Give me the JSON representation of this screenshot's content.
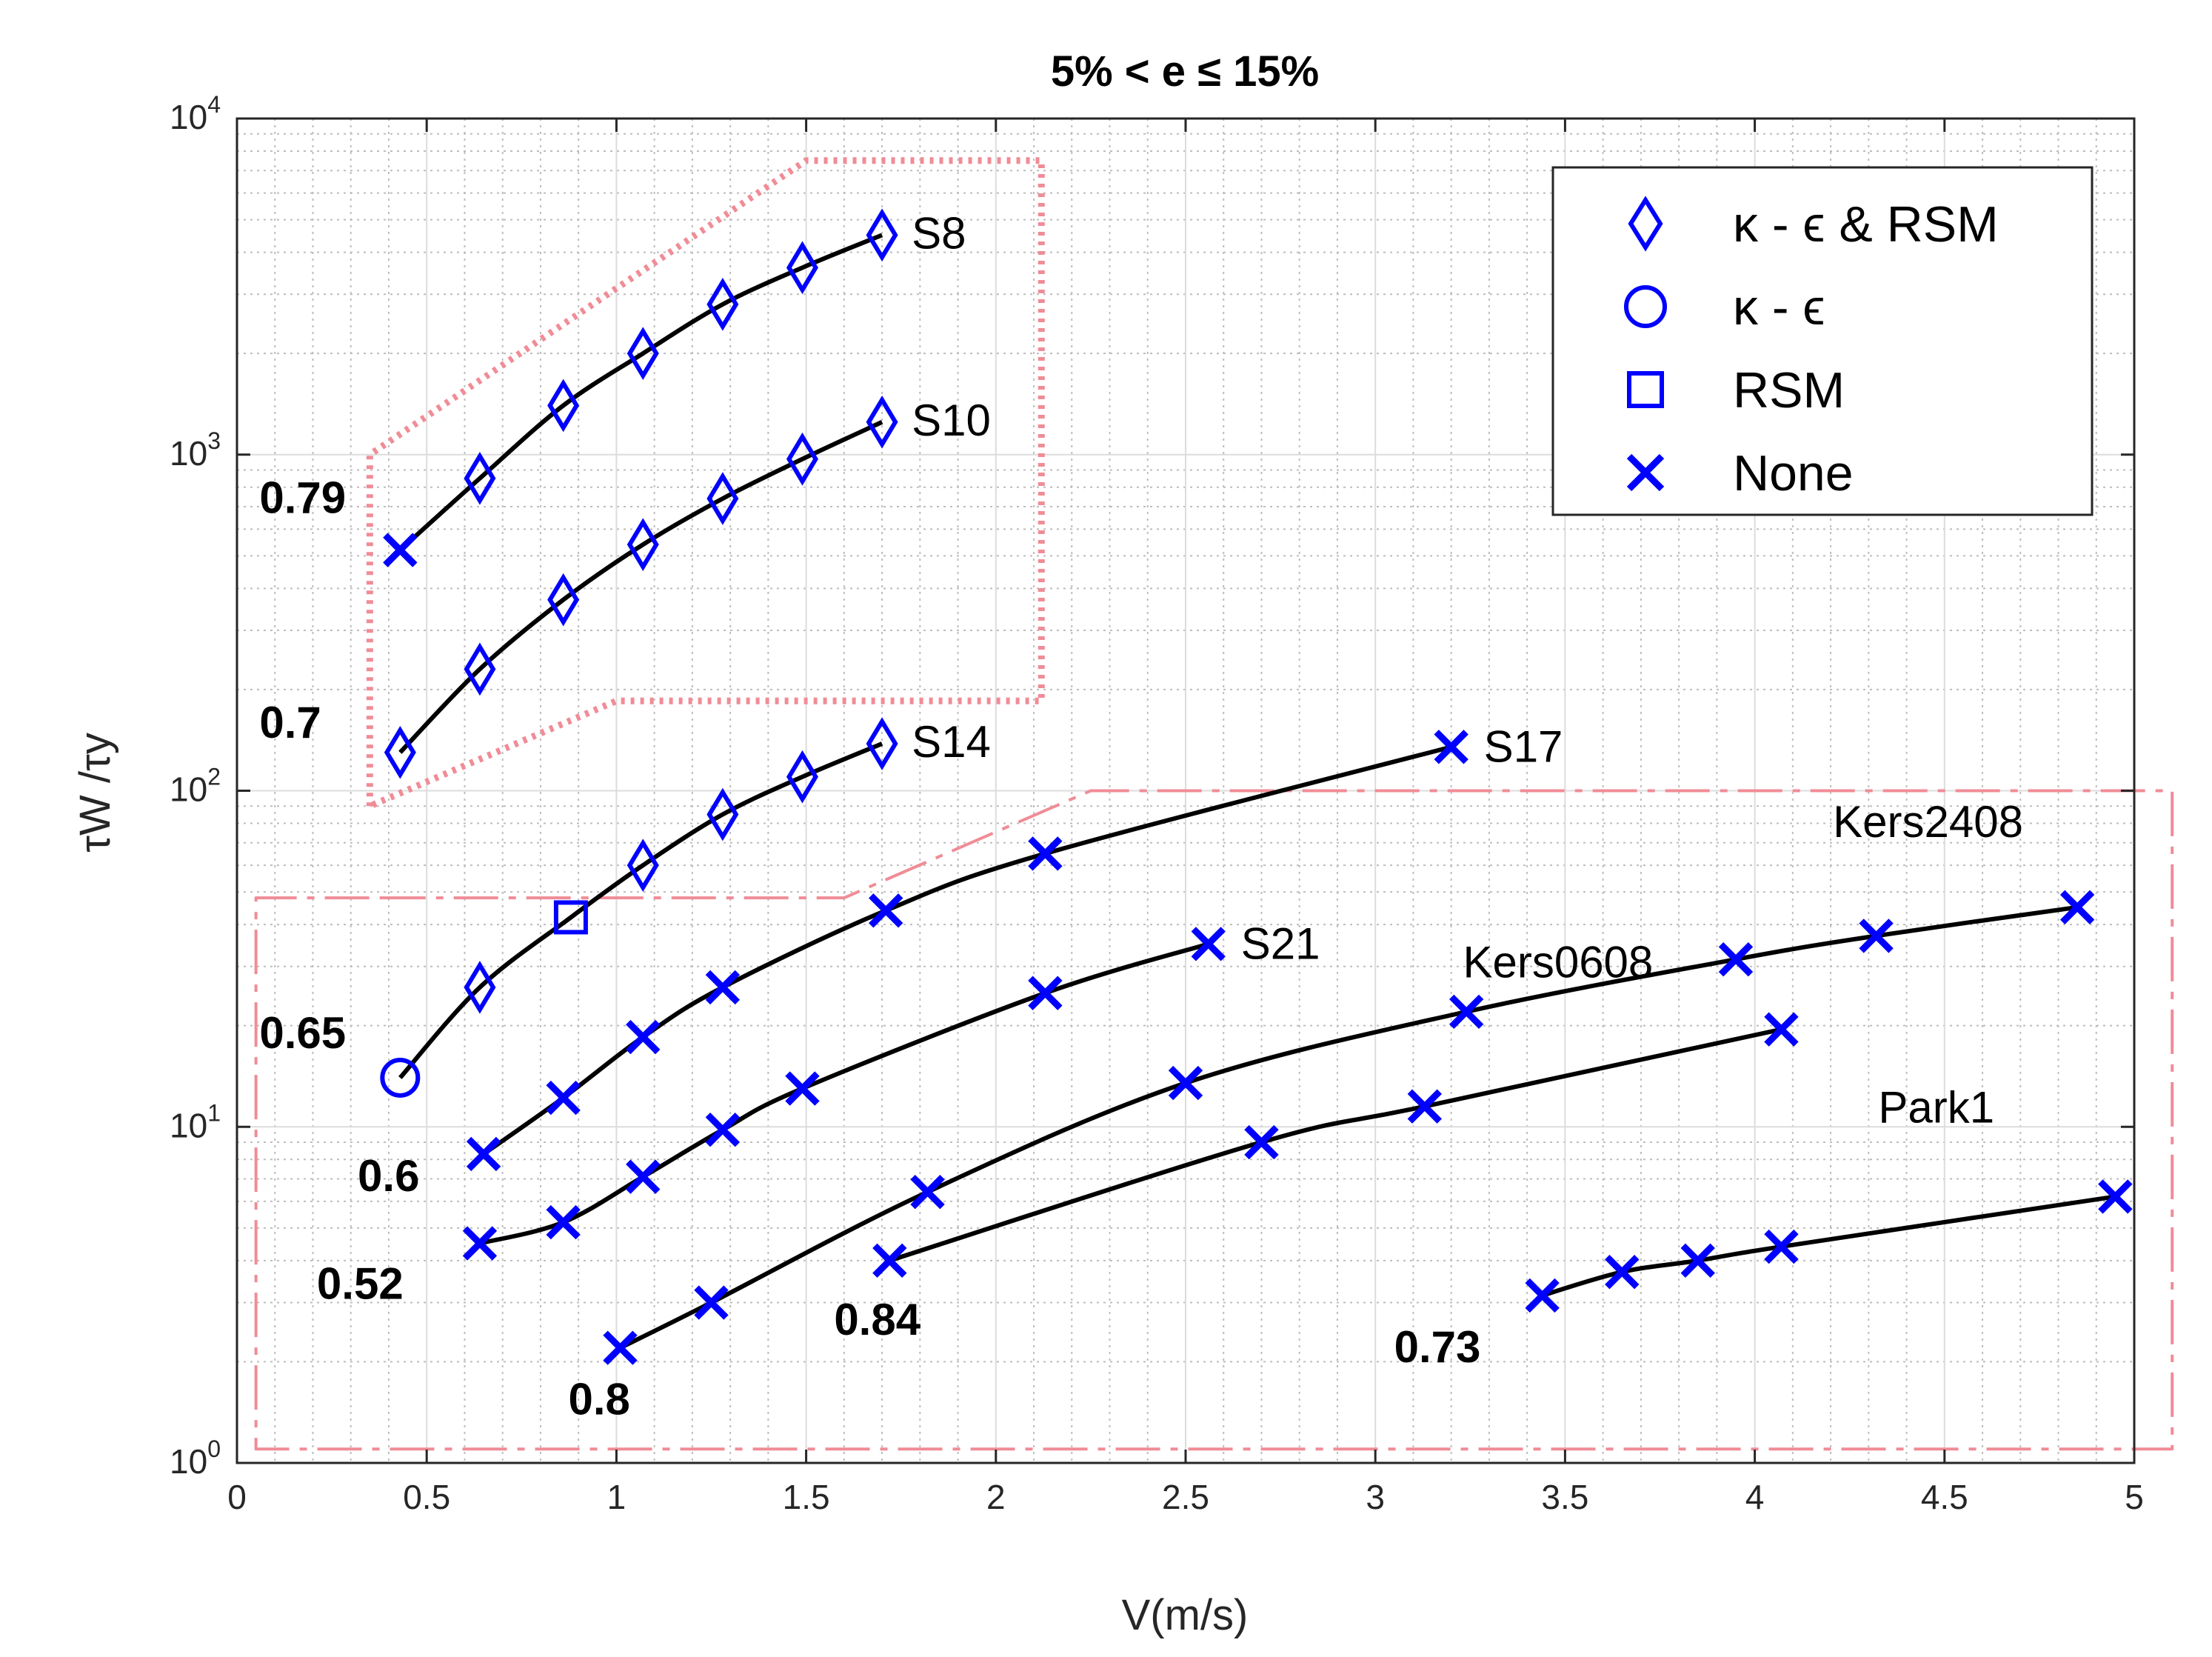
{
  "chart_data": {
    "type": "line",
    "title": "5% < e ≤ 15%",
    "xlabel": "V(m/s)",
    "ylabel": "τW /τy",
    "xlim": [
      0,
      5
    ],
    "ylim": [
      1,
      10000
    ],
    "yscale": "log",
    "x_ticks": [
      "0",
      "0.5",
      "1",
      "1.5",
      "2",
      "2.5",
      "3",
      "3.5",
      "4",
      "4.5",
      "5"
    ],
    "y_ticks": [
      {
        "base": "10",
        "exp": "0"
      },
      {
        "base": "10",
        "exp": "1"
      },
      {
        "base": "10",
        "exp": "2"
      },
      {
        "base": "10",
        "exp": "3"
      },
      {
        "base": "10",
        "exp": "4"
      }
    ],
    "grid": true,
    "legend_position": "top-right",
    "legend": [
      {
        "marker": "diamond",
        "label": "κ - ϵ & RSM"
      },
      {
        "marker": "circle",
        "label": "κ - ϵ"
      },
      {
        "marker": "square",
        "label": "RSM"
      },
      {
        "marker": "x",
        "label": "None"
      }
    ],
    "colors": {
      "marker": "#0000ff",
      "line": "#000000",
      "region": "#f08c96"
    },
    "series": [
      {
        "name": "S8",
        "start_label": "0.79",
        "points": [
          {
            "x": 0.43,
            "y": 520,
            "m": "x"
          },
          {
            "x": 0.64,
            "y": 850,
            "m": "diamond"
          },
          {
            "x": 0.86,
            "y": 1400,
            "m": "diamond"
          },
          {
            "x": 1.07,
            "y": 2000,
            "m": "diamond"
          },
          {
            "x": 1.28,
            "y": 2800,
            "m": "diamond"
          },
          {
            "x": 1.49,
            "y": 3600,
            "m": "diamond"
          },
          {
            "x": 1.7,
            "y": 4500,
            "m": "diamond"
          }
        ]
      },
      {
        "name": "S10",
        "start_label": "0.7",
        "points": [
          {
            "x": 0.43,
            "y": 130,
            "m": "diamond"
          },
          {
            "x": 0.64,
            "y": 230,
            "m": "diamond"
          },
          {
            "x": 0.86,
            "y": 370,
            "m": "diamond"
          },
          {
            "x": 1.07,
            "y": 540,
            "m": "diamond"
          },
          {
            "x": 1.28,
            "y": 740,
            "m": "diamond"
          },
          {
            "x": 1.49,
            "y": 970,
            "m": "diamond"
          },
          {
            "x": 1.7,
            "y": 1250,
            "m": "diamond"
          }
        ]
      },
      {
        "name": "S14",
        "start_label": "0.65",
        "points": [
          {
            "x": 0.43,
            "y": 14,
            "m": "circle"
          },
          {
            "x": 0.64,
            "y": 26,
            "m": "diamond"
          },
          {
            "x": 0.88,
            "y": 42,
            "m": "square"
          },
          {
            "x": 1.07,
            "y": 60,
            "m": "diamond"
          },
          {
            "x": 1.28,
            "y": 85,
            "m": "diamond"
          },
          {
            "x": 1.49,
            "y": 110,
            "m": "diamond"
          },
          {
            "x": 1.7,
            "y": 138,
            "m": "diamond"
          }
        ]
      },
      {
        "name": "S17",
        "start_label": "0.6",
        "points": [
          {
            "x": 0.65,
            "y": 8.3,
            "m": "x"
          },
          {
            "x": 0.86,
            "y": 12.2,
            "m": "x"
          },
          {
            "x": 1.07,
            "y": 18.5,
            "m": "x"
          },
          {
            "x": 1.28,
            "y": 26,
            "m": "x"
          },
          {
            "x": 1.71,
            "y": 44,
            "m": "x"
          },
          {
            "x": 2.13,
            "y": 65,
            "m": "x"
          },
          {
            "x": 3.2,
            "y": 135,
            "m": "x"
          }
        ]
      },
      {
        "name": "S21",
        "start_label": "0.52",
        "points": [
          {
            "x": 0.64,
            "y": 4.5,
            "m": "x"
          },
          {
            "x": 0.86,
            "y": 5.2,
            "m": "x"
          },
          {
            "x": 1.07,
            "y": 7.1,
            "m": "x"
          },
          {
            "x": 1.28,
            "y": 9.8,
            "m": "x"
          },
          {
            "x": 1.49,
            "y": 13,
            "m": "x"
          },
          {
            "x": 2.13,
            "y": 25,
            "m": "x"
          },
          {
            "x": 2.56,
            "y": 35,
            "m": "x"
          }
        ]
      },
      {
        "name": "Kers2408",
        "start_label": "0.8",
        "points": [
          {
            "x": 1.01,
            "y": 2.2,
            "m": "x"
          },
          {
            "x": 1.25,
            "y": 3.0,
            "m": "x"
          },
          {
            "x": 1.82,
            "y": 6.4,
            "m": "x"
          },
          {
            "x": 2.5,
            "y": 13.5,
            "m": "x"
          },
          {
            "x": 3.24,
            "y": 22,
            "m": "x"
          },
          {
            "x": 3.95,
            "y": 31.5,
            "m": "x"
          },
          {
            "x": 4.32,
            "y": 37,
            "m": "x"
          },
          {
            "x": 4.85,
            "y": 45,
            "m": "x"
          }
        ]
      },
      {
        "name": "Kers0608",
        "start_label": "0.84",
        "points": [
          {
            "x": 1.72,
            "y": 4.0,
            "m": "x"
          },
          {
            "x": 2.7,
            "y": 9.0,
            "m": "x"
          },
          {
            "x": 3.13,
            "y": 11.5,
            "m": "x"
          },
          {
            "x": 4.07,
            "y": 19.5,
            "m": "x"
          }
        ]
      },
      {
        "name": "Park1",
        "start_label": "0.73",
        "points": [
          {
            "x": 3.44,
            "y": 3.15,
            "m": "x"
          },
          {
            "x": 3.65,
            "y": 3.7,
            "m": "x"
          },
          {
            "x": 3.85,
            "y": 4.0,
            "m": "x"
          },
          {
            "x": 4.07,
            "y": 4.4,
            "m": "x"
          },
          {
            "x": 4.95,
            "y": 6.2,
            "m": "x"
          }
        ]
      }
    ],
    "regions": [
      {
        "style": "dotted",
        "points": [
          [
            0.35,
            90
          ],
          [
            0.35,
            1000
          ],
          [
            1.5,
            7500
          ],
          [
            2.12,
            7500
          ],
          [
            2.12,
            185
          ],
          [
            1.0,
            185
          ]
        ]
      },
      {
        "style": "dashed",
        "points": [
          [
            0.38,
            48
          ],
          [
            1.6,
            48
          ],
          [
            2.25,
            100
          ],
          [
            5.1,
            100
          ],
          [
            5.1,
            1.1
          ],
          [
            0.05,
            1.1
          ],
          [
            0.05,
            48
          ]
        ]
      }
    ]
  }
}
